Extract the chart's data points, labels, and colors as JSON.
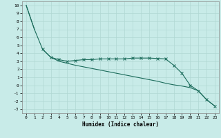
{
  "xlabel": "Humidex (Indice chaleur)",
  "x_values": [
    0,
    1,
    2,
    3,
    4,
    5,
    6,
    7,
    8,
    9,
    10,
    11,
    12,
    13,
    14,
    15,
    16,
    17,
    18,
    19,
    20,
    21,
    22,
    23
  ],
  "line1_x": [
    0,
    1
  ],
  "line1_y": [
    10,
    7
  ],
  "line2_x": [
    2,
    3,
    4,
    5,
    6,
    7,
    8,
    9,
    10,
    11,
    12,
    13,
    14,
    15,
    16,
    17,
    18,
    19,
    20,
    21,
    22,
    23
  ],
  "line2_y": [
    4.5,
    3.5,
    3.2,
    3.0,
    3.1,
    3.2,
    3.2,
    3.3,
    3.3,
    3.3,
    3.3,
    3.4,
    3.4,
    3.4,
    3.35,
    3.3,
    2.5,
    1.5,
    0.0,
    -0.7,
    -1.8,
    -2.6
  ],
  "line3_x": [
    0,
    1,
    2,
    3,
    4,
    5,
    6,
    7,
    8,
    9,
    10,
    11,
    12,
    13,
    14,
    15,
    16,
    17,
    18,
    19,
    20,
    21,
    22,
    23
  ],
  "line3_y": [
    10,
    7,
    4.5,
    3.5,
    3.0,
    2.75,
    2.5,
    2.3,
    2.1,
    1.9,
    1.7,
    1.5,
    1.3,
    1.1,
    0.9,
    0.7,
    0.5,
    0.25,
    0.05,
    -0.1,
    -0.3,
    -0.7,
    -1.8,
    -2.6
  ],
  "bg_color": "#c8ebe8",
  "grid_color": "#b0d8d3",
  "line_color": "#1a6b5a",
  "ylim": [
    -3.5,
    10.5
  ],
  "xlim": [
    -0.5,
    23.5
  ],
  "yticks": [
    -3,
    -2,
    -1,
    0,
    1,
    2,
    3,
    4,
    5,
    6,
    7,
    8,
    9,
    10
  ],
  "xticks": [
    0,
    1,
    2,
    3,
    4,
    5,
    6,
    7,
    8,
    9,
    10,
    11,
    12,
    13,
    14,
    15,
    16,
    17,
    18,
    19,
    20,
    21,
    22,
    23
  ]
}
